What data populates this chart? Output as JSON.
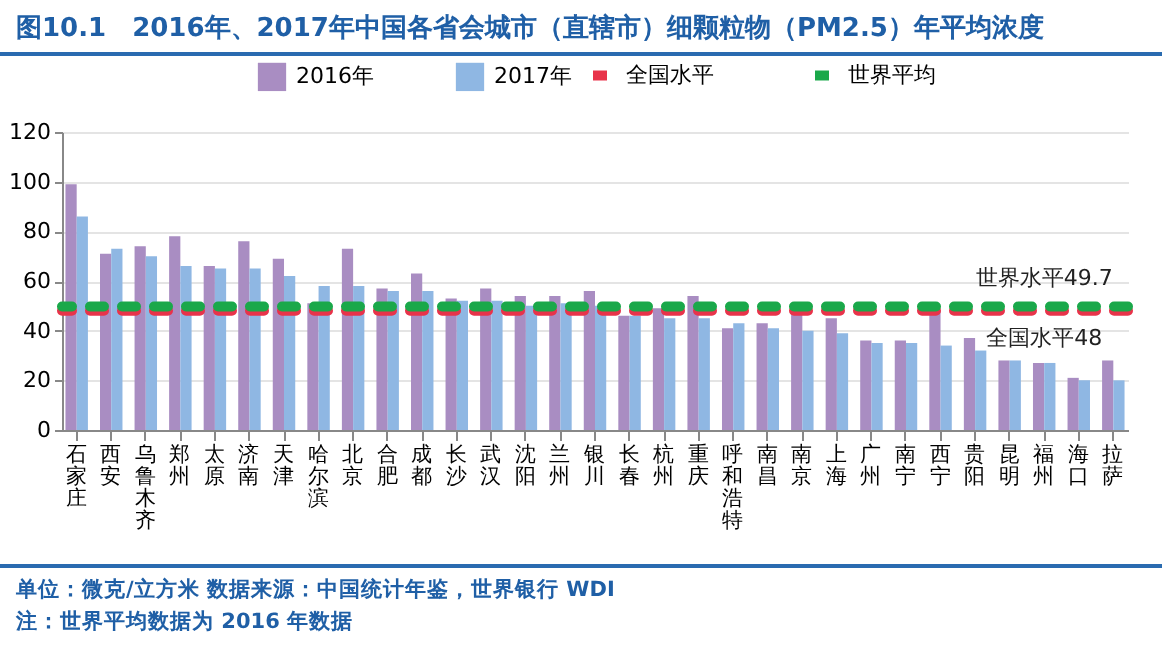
{
  "chart_data": {
    "type": "bar",
    "title": "图10.1　2016年、2017年中国各省会城市（直辖市）细颗粒物（PM2.5）年平均浓度",
    "categories": [
      "石家庄",
      "西安",
      "乌鲁木齐",
      "郑州",
      "太原",
      "济南",
      "天津",
      "哈尔滨",
      "北京",
      "合肥",
      "成都",
      "长沙",
      "武汉",
      "沈阳",
      "兰州",
      "银川",
      "长春",
      "杭州",
      "重庆",
      "呼和浩特",
      "南昌",
      "南京",
      "上海",
      "广州",
      "南宁",
      "西宁",
      "贵阳",
      "昆明",
      "福州",
      "海口",
      "拉萨"
    ],
    "series": [
      {
        "name": "2016年",
        "color": "#a98dc2",
        "values": [
          99,
          71,
          74,
          78,
          66,
          76,
          69,
          51,
          73,
          57,
          63,
          53,
          57,
          54,
          54,
          56,
          46,
          49,
          54,
          41,
          43,
          48,
          45,
          36,
          36,
          48,
          37,
          28,
          27,
          21,
          28
        ]
      },
      {
        "name": "2017年",
        "color": "#8fb7e3",
        "values": [
          86,
          73,
          70,
          66,
          65,
          65,
          62,
          58,
          58,
          56,
          56,
          52,
          52,
          50,
          51,
          50,
          46,
          45,
          45,
          43,
          41,
          40,
          39,
          35,
          35,
          34,
          32,
          28,
          27,
          20,
          20
        ]
      }
    ],
    "ref_lines": [
      {
        "axis": "y",
        "value": 48,
        "label": "全国水平",
        "color": "#e8334a",
        "line_style": "dashed"
      },
      {
        "axis": "y",
        "value": 49.7,
        "label": "世界平均",
        "color": "#1aa84a",
        "line_style": "dashed"
      }
    ],
    "annotations": [
      {
        "text": "世界水平49.7",
        "x": "福州",
        "y": 49.7
      },
      {
        "text": "全国水平48",
        "x": "福州",
        "y": 48
      },
      "单位：微克/立方米  数据来源：中国统计年鉴，世界银行 WDI",
      "注：世界平均数据为 2016 年数据"
    ],
    "ylim": [
      0,
      120
    ],
    "yticks": [
      0,
      20,
      40,
      60,
      80,
      100,
      120
    ],
    "grid": "y",
    "legend": "top"
  }
}
